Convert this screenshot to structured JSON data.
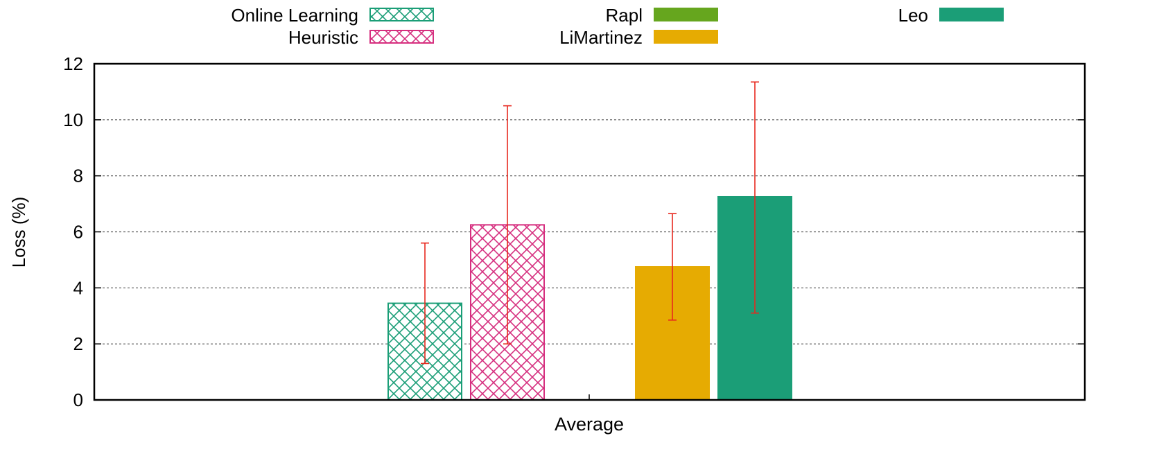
{
  "chart_data": {
    "type": "bar",
    "categories": [
      "Average"
    ],
    "xlabel": "Average",
    "ylabel": "Loss (%)",
    "ylim": [
      0,
      12
    ],
    "yticks": [
      0,
      2,
      4,
      6,
      8,
      10,
      12
    ],
    "grid": "horizontal dashed",
    "legend_position": "top",
    "series": [
      {
        "name": "Online Learning",
        "value": 3.45,
        "err_low": 1.3,
        "err_high": 5.6,
        "color": "#1b9e77",
        "pattern": "crosshatch"
      },
      {
        "name": "Heuristic",
        "value": 6.25,
        "err_low": 2.0,
        "err_high": 10.5,
        "color": "#d62f7f",
        "pattern": "crosshatch"
      },
      {
        "name": "Rapl",
        "value": 0,
        "err_low": null,
        "err_high": null,
        "color": "#66a61e",
        "pattern": "solid"
      },
      {
        "name": "LiMartinez",
        "value": 4.75,
        "err_low": 2.85,
        "err_high": 6.65,
        "color": "#e6ab02",
        "pattern": "solid"
      },
      {
        "name": "Leo",
        "value": 7.25,
        "err_low": 3.1,
        "err_high": 11.35,
        "color": "#1b9e77",
        "pattern": "solid"
      }
    ],
    "error_bar_color": "#e8281e"
  }
}
